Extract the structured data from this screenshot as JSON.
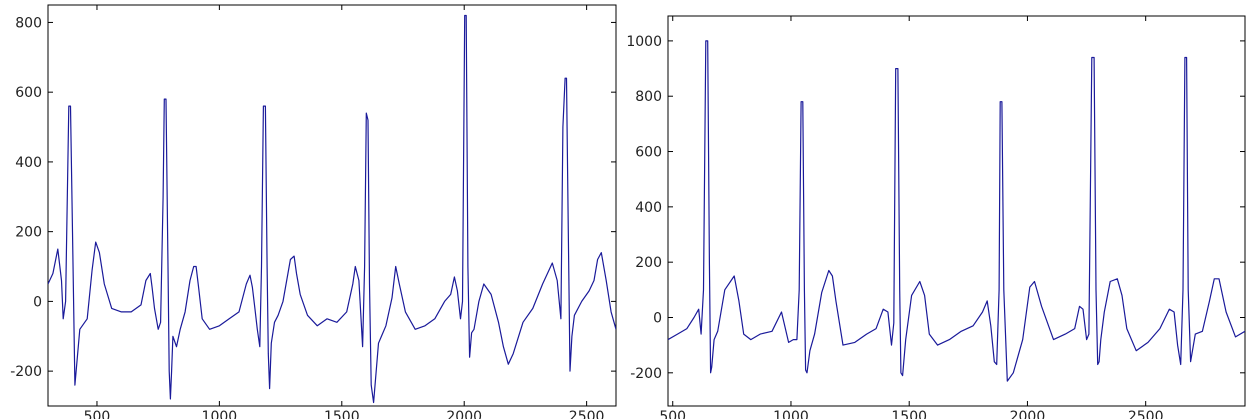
{
  "chart_data": [
    {
      "type": "line",
      "xlim": [
        300,
        2620
      ],
      "ylim": [
        -300,
        850
      ],
      "xticks": [
        500,
        1000,
        1500,
        2000,
        2500
      ],
      "yticks": [
        -200,
        0,
        200,
        400,
        600,
        800
      ],
      "grid": false,
      "legend": "none",
      "color": "#1a1a9a",
      "series": [
        {
          "x": [
            300,
            320,
            340,
            355,
            362,
            372,
            385,
            392,
            400,
            410,
            430,
            460,
            480,
            495,
            510,
            530,
            560,
            600,
            640,
            680,
            700,
            718,
            725,
            735,
            750,
            760,
            770,
            775,
            782,
            790,
            795,
            800,
            805,
            810,
            825,
            840,
            860,
            880,
            895,
            905,
            915,
            930,
            960,
            1000,
            1040,
            1080,
            1110,
            1125,
            1135,
            1145,
            1155,
            1165,
            1172,
            1180,
            1188,
            1195,
            1200,
            1205,
            1212,
            1225,
            1240,
            1260,
            1290,
            1305,
            1315,
            1330,
            1360,
            1400,
            1440,
            1480,
            1520,
            1545,
            1555,
            1570,
            1585,
            1593,
            1600,
            1607,
            1613,
            1620,
            1630,
            1650,
            1680,
            1705,
            1720,
            1735,
            1760,
            1800,
            1840,
            1880,
            1920,
            1945,
            1960,
            1972,
            1985,
            1993,
            2002,
            2008,
            2015,
            2022,
            2030,
            2040,
            2060,
            2080,
            2110,
            2140,
            2160,
            2180,
            2200,
            2240,
            2280,
            2320,
            2360,
            2380,
            2395,
            2403,
            2412,
            2418,
            2425,
            2432,
            2440,
            2450,
            2480,
            2510,
            2530,
            2545,
            2560,
            2580,
            2600,
            2620
          ],
          "y": [
            50,
            80,
            150,
            60,
            -50,
            0,
            560,
            560,
            200,
            -240,
            -80,
            -50,
            90,
            170,
            140,
            50,
            -20,
            -30,
            -30,
            -10,
            60,
            80,
            40,
            -20,
            -80,
            -60,
            300,
            580,
            580,
            100,
            -200,
            -280,
            -200,
            -100,
            -130,
            -80,
            -30,
            60,
            100,
            100,
            40,
            -50,
            -80,
            -70,
            -50,
            -30,
            50,
            75,
            40,
            -20,
            -80,
            -130,
            100,
            560,
            560,
            100,
            -150,
            -250,
            -120,
            -60,
            -40,
            0,
            120,
            130,
            80,
            20,
            -40,
            -70,
            -50,
            -60,
            -30,
            50,
            100,
            60,
            -130,
            100,
            540,
            520,
            50,
            -240,
            -290,
            -120,
            -70,
            10,
            100,
            50,
            -30,
            -80,
            -70,
            -50,
            0,
            20,
            70,
            30,
            -50,
            0,
            820,
            820,
            100,
            -160,
            -90,
            -80,
            0,
            50,
            20,
            -60,
            -130,
            -180,
            -150,
            -60,
            -20,
            50,
            110,
            60,
            -50,
            500,
            640,
            640,
            200,
            -200,
            -100,
            -40,
            0,
            30,
            60,
            120,
            140,
            60,
            -30,
            -80
          ]
        }
      ]
    },
    {
      "type": "line",
      "xlim": [
        480,
        2920
      ],
      "ylim": [
        -320,
        1090
      ],
      "xticks": [
        500,
        1000,
        1500,
        2000,
        2500
      ],
      "yticks": [
        -200,
        0,
        200,
        400,
        600,
        800,
        1000
      ],
      "grid": false,
      "legend": "none",
      "color": "#1a1a9a",
      "series": [
        {
          "x": [
            480,
            520,
            560,
            590,
            610,
            620,
            630,
            640,
            648,
            655,
            660,
            665,
            675,
            690,
            720,
            760,
            780,
            800,
            830,
            870,
            920,
            960,
            990,
            1010,
            1025,
            1035,
            1043,
            1050,
            1057,
            1062,
            1068,
            1080,
            1100,
            1130,
            1160,
            1175,
            1190,
            1220,
            1270,
            1320,
            1360,
            1390,
            1410,
            1425,
            1435,
            1443,
            1452,
            1460,
            1465,
            1472,
            1485,
            1510,
            1545,
            1565,
            1585,
            1620,
            1670,
            1720,
            1770,
            1810,
            1830,
            1845,
            1860,
            1870,
            1880,
            1885,
            1892,
            1900,
            1915,
            1940,
            1980,
            2010,
            2030,
            2060,
            2110,
            2160,
            2200,
            2220,
            2235,
            2250,
            2260,
            2272,
            2282,
            2290,
            2297,
            2303,
            2310,
            2325,
            2350,
            2380,
            2400,
            2420,
            2460,
            2510,
            2560,
            2600,
            2620,
            2635,
            2648,
            2658,
            2666,
            2673,
            2680,
            2690,
            2710,
            2740,
            2770,
            2790,
            2810,
            2840,
            2880,
            2920
          ],
          "y": [
            -80,
            -60,
            -40,
            0,
            30,
            -60,
            100,
            1000,
            1000,
            200,
            -200,
            -180,
            -80,
            -50,
            100,
            150,
            60,
            -60,
            -80,
            -60,
            -50,
            20,
            -90,
            -80,
            -80,
            100,
            780,
            780,
            100,
            -190,
            -200,
            -120,
            -60,
            90,
            170,
            150,
            60,
            -100,
            -90,
            -60,
            -40,
            30,
            20,
            -100,
            -20,
            900,
            900,
            100,
            -200,
            -210,
            -80,
            80,
            130,
            80,
            -60,
            -100,
            -80,
            -50,
            -30,
            20,
            60,
            -30,
            -160,
            -170,
            100,
            780,
            780,
            100,
            -230,
            -200,
            -80,
            110,
            130,
            40,
            -80,
            -60,
            -40,
            40,
            30,
            -80,
            -60,
            940,
            940,
            100,
            -170,
            -160,
            -80,
            20,
            130,
            140,
            80,
            -40,
            -120,
            -90,
            -40,
            30,
            20,
            -100,
            -170,
            100,
            940,
            940,
            100,
            -160,
            -60,
            -50,
            60,
            140,
            140,
            20,
            -70,
            -50
          ]
        }
      ]
    }
  ]
}
